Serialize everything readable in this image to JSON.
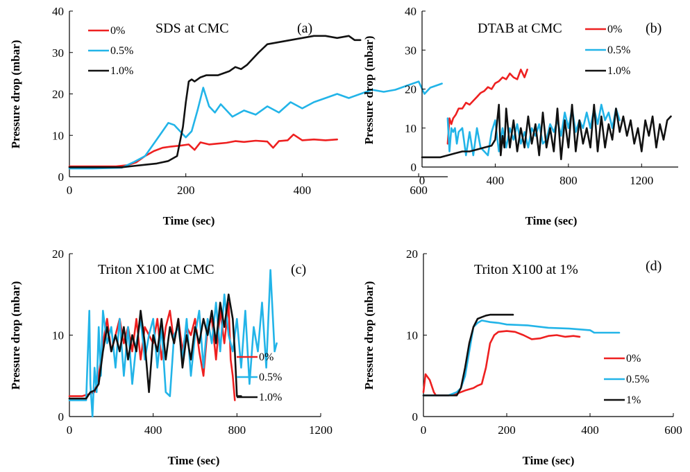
{
  "colors": {
    "red": "#ee2020",
    "cyan": "#22b4e8",
    "black": "#111111"
  },
  "chart_data": [
    {
      "type": "line",
      "id": "a",
      "title": "SDS at CMC",
      "tag": "(a)",
      "xlabel": "Time (sec)",
      "ylabel": "Pressure drop (mbar)",
      "xlim": [
        0,
        650
      ],
      "ylim": [
        0,
        40
      ],
      "xticks": [
        0,
        200,
        400,
        600
      ],
      "yticks": [
        0,
        10,
        20,
        30,
        40
      ],
      "legend_position": "top-left",
      "series": [
        {
          "name": "0%",
          "color": "#ee2020",
          "x": [
            0,
            40,
            80,
            100,
            115,
            130,
            145,
            160,
            175,
            190,
            205,
            215,
            225,
            240,
            255,
            270,
            285,
            300,
            320,
            340,
            350,
            360,
            375,
            385,
            400,
            420,
            440,
            460
          ],
          "y": [
            2.5,
            2.5,
            2.5,
            2.8,
            3.5,
            5,
            6.2,
            7,
            7.3,
            7.5,
            7.8,
            6.5,
            8.3,
            7.8,
            8,
            8.2,
            8.6,
            8.4,
            8.7,
            8.5,
            7,
            8.6,
            8.8,
            10.2,
            8.8,
            9,
            8.8,
            9
          ]
        },
        {
          "name": "0.5%",
          "color": "#22b4e8",
          "x": [
            0,
            40,
            90,
            110,
            130,
            150,
            160,
            170,
            180,
            190,
            200,
            210,
            220,
            230,
            240,
            250,
            260,
            270,
            280,
            300,
            320,
            340,
            360,
            380,
            400,
            420,
            440,
            460,
            480,
            500,
            520,
            540,
            560,
            580,
            600,
            610,
            620,
            640
          ],
          "y": [
            2,
            2,
            2.2,
            3.5,
            5,
            9,
            11,
            13,
            12.5,
            11,
            9.5,
            11,
            16,
            21.5,
            17,
            15.5,
            17.5,
            16,
            14.5,
            16,
            15,
            17,
            15.5,
            18,
            16.5,
            18,
            19,
            20,
            19,
            20,
            21,
            20.5,
            21,
            22,
            23,
            20,
            21.5,
            22.5
          ]
        },
        {
          "name": "1.0%",
          "color": "#111111",
          "x": [
            0,
            40,
            90,
            110,
            130,
            150,
            170,
            185,
            195,
            200,
            205,
            210,
            215,
            225,
            235,
            245,
            255,
            265,
            275,
            285,
            295,
            305,
            315,
            325,
            340,
            360,
            380,
            400,
            420,
            440,
            460,
            480,
            490,
            500
          ],
          "y": [
            2.3,
            2.3,
            2.3,
            2.6,
            2.9,
            3.2,
            3.8,
            5,
            12,
            18,
            23,
            23.5,
            23,
            24,
            24.5,
            24.5,
            24.5,
            25,
            25.5,
            26.5,
            26,
            27,
            28.5,
            30,
            32,
            32.5,
            33,
            33.5,
            34,
            34,
            33.5,
            34,
            33,
            33
          ]
        }
      ]
    },
    {
      "type": "line",
      "id": "b",
      "title": "DTAB at CMC",
      "tag": "(b)",
      "xlabel": "Time (sec)",
      "ylabel": "Pressure drop (mbar)",
      "xlim": [
        0,
        1400
      ],
      "ylim": [
        0,
        40
      ],
      "xticks": [
        0,
        400,
        800,
        1200
      ],
      "yticks": [
        0,
        10,
        20,
        30,
        40
      ],
      "legend_position": "top-right",
      "series": [
        {
          "name": "0%",
          "color": "#ee2020",
          "x": [
            140,
            150,
            160,
            170,
            185,
            200,
            220,
            240,
            260,
            280,
            300,
            320,
            340,
            360,
            380,
            400,
            420,
            440,
            460,
            480,
            500,
            520,
            540,
            560,
            575
          ],
          "y": [
            6,
            12.5,
            11,
            12.5,
            13.5,
            15,
            15,
            16.5,
            16,
            17,
            18,
            19,
            19.5,
            20.5,
            20,
            21.5,
            22,
            23,
            22.5,
            24,
            23,
            22.5,
            25,
            23,
            25
          ]
        },
        {
          "name": "0.5%",
          "color": "#22b4e8",
          "x": [
            140,
            150,
            160,
            170,
            180,
            190,
            200,
            220,
            240,
            260,
            280,
            300,
            320,
            340,
            360,
            380,
            400,
            420,
            440,
            460,
            480,
            500,
            520,
            540,
            560,
            580,
            600,
            620,
            640,
            660,
            680,
            700,
            720,
            740,
            760,
            780,
            800,
            820,
            840,
            860,
            880,
            900,
            920,
            940,
            960,
            980,
            1000,
            1020,
            1040,
            1060,
            1080
          ],
          "y": [
            12.5,
            4,
            10,
            9,
            10,
            6,
            9,
            10,
            3,
            9,
            3,
            10,
            5,
            4,
            3,
            9,
            12,
            4,
            10,
            5,
            10,
            7,
            11,
            6,
            9,
            5,
            10,
            8,
            11,
            6,
            7,
            11,
            9,
            12,
            8,
            14,
            10,
            15,
            9,
            12,
            10,
            14,
            10,
            15,
            11,
            16,
            12,
            14,
            10,
            15,
            12
          ]
        },
        {
          "name": "1.0%",
          "color": "#111111",
          "x": [
            0,
            100,
            140,
            180,
            220,
            260,
            300,
            340,
            380,
            400,
            420,
            430,
            440,
            450,
            460,
            480,
            500,
            520,
            540,
            560,
            580,
            600,
            620,
            640,
            660,
            680,
            700,
            720,
            740,
            760,
            780,
            800,
            820,
            840,
            860,
            880,
            900,
            920,
            940,
            960,
            980,
            1000,
            1020,
            1040,
            1060,
            1080,
            1100,
            1120,
            1140,
            1160,
            1180,
            1200,
            1220,
            1240,
            1260,
            1280,
            1300,
            1320,
            1340,
            1360
          ],
          "y": [
            2.5,
            2.5,
            3,
            3.5,
            4,
            4,
            4.5,
            5,
            5.5,
            7,
            16,
            3,
            8,
            5,
            15,
            5,
            12,
            4,
            10,
            5,
            13,
            6,
            11,
            3,
            14,
            5,
            10,
            4,
            15,
            2,
            12,
            5,
            16,
            4,
            12,
            6,
            10,
            5,
            16,
            4,
            13,
            5,
            11,
            7,
            15,
            9,
            13,
            8,
            12,
            6,
            10,
            4,
            12,
            8,
            13,
            5,
            11,
            7,
            12,
            13
          ]
        }
      ]
    },
    {
      "type": "line",
      "id": "c",
      "title": "Triton X100 at CMC",
      "tag": "(c)",
      "xlabel": "Time (sec)",
      "ylabel": "Pressure drop (mbar)",
      "xlim": [
        0,
        1200
      ],
      "ylim": [
        0,
        20
      ],
      "xticks": [
        0,
        400,
        800,
        1200
      ],
      "yticks": [
        0,
        10,
        20
      ],
      "legend_position": "bottom-right",
      "series": [
        {
          "name": "0%",
          "color": "#ee2020",
          "x": [
            0,
            60,
            100,
            120,
            140,
            160,
            180,
            200,
            220,
            240,
            260,
            280,
            300,
            320,
            340,
            360,
            380,
            400,
            420,
            440,
            460,
            480,
            500,
            520,
            540,
            560,
            580,
            600,
            620,
            640,
            660,
            680,
            700,
            720,
            740,
            760,
            770,
            780,
            790
          ],
          "y": [
            2.5,
            2.5,
            2.8,
            3,
            5,
            9,
            12,
            8,
            10,
            12,
            9,
            11,
            8,
            12,
            7,
            11,
            10,
            9,
            12,
            7,
            11,
            13,
            9,
            12,
            8,
            11,
            10,
            12,
            8,
            5,
            11,
            12,
            7,
            13,
            9,
            14,
            7,
            5,
            2
          ]
        },
        {
          "name": "0.5%",
          "color": "#22b4e8",
          "x": [
            0,
            80,
            95,
            100,
            110,
            120,
            130,
            140,
            150,
            160,
            180,
            200,
            220,
            240,
            260,
            280,
            300,
            320,
            340,
            360,
            380,
            400,
            420,
            440,
            460,
            480,
            500,
            520,
            540,
            560,
            580,
            600,
            620,
            640,
            660,
            680,
            700,
            720,
            740,
            760,
            780,
            800,
            820,
            840,
            860,
            880,
            900,
            920,
            940,
            960,
            980,
            990
          ],
          "y": [
            2,
            2,
            13,
            4,
            0,
            6,
            3,
            11,
            5,
            13,
            9,
            11,
            6,
            12,
            5,
            11,
            4,
            9,
            12,
            7,
            10,
            12,
            6,
            11,
            3,
            2.5,
            10,
            11,
            7,
            12,
            5,
            10,
            13,
            6,
            12,
            9,
            14,
            8,
            15,
            10,
            8,
            12,
            6,
            13,
            4,
            11,
            8,
            14,
            6,
            18,
            8,
            9
          ]
        },
        {
          "name": "1.0%",
          "color": "#111111",
          "x": [
            0,
            80,
            100,
            120,
            140,
            160,
            180,
            200,
            220,
            240,
            260,
            280,
            300,
            320,
            340,
            360,
            380,
            400,
            420,
            440,
            460,
            480,
            500,
            520,
            540,
            560,
            580,
            600,
            620,
            640,
            660,
            680,
            700,
            720,
            740,
            760,
            780,
            790,
            800,
            820
          ],
          "y": [
            2.2,
            2.2,
            3,
            3.2,
            4,
            8,
            11,
            8,
            10,
            8,
            11,
            7,
            10,
            8,
            13,
            9,
            3,
            10,
            8,
            12,
            7,
            11,
            9,
            12,
            6,
            10,
            7,
            11,
            9,
            12,
            10,
            13,
            9,
            14,
            11,
            15,
            12,
            8,
            2.5,
            2.5
          ]
        }
      ]
    },
    {
      "type": "line",
      "id": "d",
      "title": "Triton X100 at 1%",
      "tag": "(d)",
      "xlabel": "Time (sec)",
      "ylabel": "Pressure drop (mbar)",
      "xlim": [
        0,
        600
      ],
      "ylim": [
        0,
        20
      ],
      "xticks": [
        0,
        200,
        400,
        600
      ],
      "yticks": [
        0,
        10,
        20
      ],
      "legend_position": "bottom-right",
      "series": [
        {
          "name": "0%",
          "color": "#ee2020",
          "x": [
            0,
            5,
            15,
            25,
            30,
            40,
            60,
            80,
            100,
            120,
            130,
            140,
            150,
            160,
            170,
            180,
            200,
            220,
            240,
            260,
            280,
            300,
            320,
            340,
            360,
            375
          ],
          "y": [
            3,
            5.2,
            4.5,
            3,
            2.6,
            2.6,
            2.6,
            2.8,
            3.2,
            3.5,
            3.8,
            4,
            6,
            9,
            10,
            10.4,
            10.5,
            10.4,
            10,
            9.5,
            9.6,
            9.9,
            10,
            9.8,
            9.9,
            9.8
          ]
        },
        {
          "name": "0.5%",
          "color": "#22b4e8",
          "x": [
            0,
            40,
            60,
            80,
            90,
            100,
            110,
            120,
            130,
            140,
            150,
            160,
            180,
            200,
            250,
            300,
            350,
            400,
            410,
            420,
            470
          ],
          "y": [
            2.6,
            2.6,
            2.6,
            3,
            3.5,
            5,
            8,
            11,
            11.5,
            11.8,
            11.7,
            11.6,
            11.5,
            11.3,
            11.2,
            10.9,
            10.8,
            10.6,
            10.3,
            10.3,
            10.3
          ]
        },
        {
          "name": "1%",
          "color": "#111111",
          "x": [
            0,
            60,
            80,
            90,
            100,
            110,
            120,
            130,
            140,
            150,
            160,
            180,
            200,
            215
          ],
          "y": [
            2.6,
            2.6,
            2.6,
            3.5,
            6,
            9,
            11,
            12,
            12.2,
            12.4,
            12.5,
            12.5,
            12.5,
            12.5
          ]
        }
      ]
    }
  ]
}
